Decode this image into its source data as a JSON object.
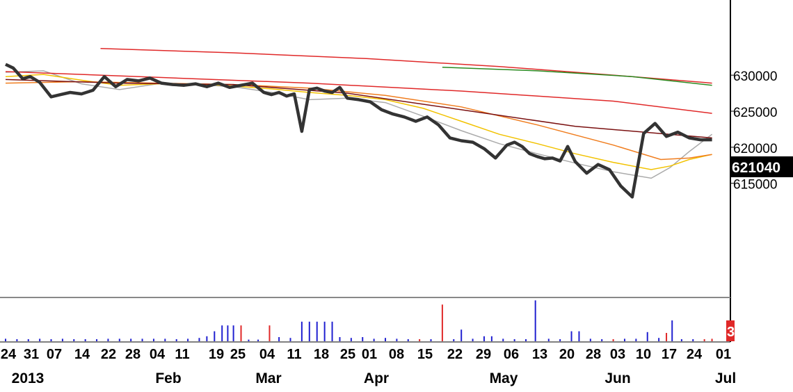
{
  "chart_data": {
    "type": "line",
    "title": "",
    "xlabel": "",
    "ylabel": "",
    "ylim": [
      611000,
      634500
    ],
    "grid": false,
    "legend": "none",
    "y_ticks": [
      "630000",
      "625000",
      "620000",
      "615000"
    ],
    "y_tick_values": [
      630000,
      625000,
      620000,
      615000
    ],
    "last_price_label": "621040",
    "last_price": 621040,
    "volume_badge": "3",
    "x_tick_labels": [
      "24",
      "31",
      "07",
      "14",
      "22",
      "28",
      "04",
      "11",
      "19",
      "25",
      "04",
      "11",
      "18",
      "25",
      "01",
      "08",
      "15",
      "22",
      "29",
      "06",
      "13",
      "20",
      "28",
      "03",
      "10",
      "17",
      "24",
      "01"
    ],
    "month_labels": [
      "2013",
      "Feb",
      "Mar",
      "Apr",
      "May",
      "Jun",
      "Jul"
    ],
    "price_series": {
      "name": "",
      "color": "#333333",
      "t": [
        0,
        4,
        9,
        13,
        18,
        24,
        29,
        34,
        40,
        46,
        52,
        58,
        64,
        70,
        76,
        82,
        88,
        94,
        100,
        106,
        112,
        118,
        124,
        130,
        136,
        140,
        144,
        148,
        152,
        156,
        160,
        164,
        168,
        172,
        176,
        180,
        186,
        192,
        198,
        204,
        210,
        216,
        222,
        228,
        234,
        240,
        246,
        252,
        258,
        264,
        268,
        272,
        276,
        280,
        284,
        288,
        292,
        296,
        300,
        306,
        312,
        318,
        324,
        330,
        336,
        342,
        348,
        354,
        360,
        366,
        372,
        376,
        380,
        384,
        388,
        392,
        396,
        400,
        404,
        408,
        412,
        416
      ],
      "v": [
        631500,
        631000,
        629500,
        629800,
        629000,
        627000,
        627300,
        627600,
        627400,
        627900,
        629800,
        628400,
        629400,
        629200,
        629600,
        628900,
        628700,
        628600,
        628800,
        628400,
        628900,
        628300,
        628600,
        628900,
        627600,
        627300,
        627600,
        627100,
        627400,
        622200,
        628000,
        628200,
        627800,
        627600,
        628300,
        626800,
        626600,
        626300,
        625200,
        624600,
        624200,
        623600,
        624200,
        623100,
        621300,
        620900,
        620700,
        619800,
        618500,
        620300,
        620700,
        620100,
        619100,
        618700,
        618400,
        618500,
        618100,
        620100,
        618000,
        616400,
        617600,
        616900,
        614600,
        613100,
        621900,
        623300,
        621500,
        622100,
        621300,
        621040,
        621040,
        621040,
        621040,
        621040,
        621040,
        621040,
        621040,
        621040,
        621040,
        621040,
        621040,
        621040
      ]
    },
    "moving_averages": [
      {
        "color": "#aaaaaa",
        "t": [
          0,
          20,
          40,
          60,
          80,
          100,
          120,
          140,
          160,
          180,
          200,
          220,
          240,
          260,
          280,
          300,
          320,
          340,
          350,
          360,
          372
        ],
        "v": [
          630400,
          630600,
          628800,
          628000,
          628800,
          628700,
          628400,
          627600,
          626600,
          626800,
          626200,
          624300,
          622300,
          620500,
          619100,
          617800,
          616600,
          615700,
          617200,
          619400,
          621800
        ]
      },
      {
        "color": "#f2c200",
        "t": [
          0,
          20,
          40,
          60,
          80,
          100,
          120,
          140,
          160,
          180,
          200,
          220,
          240,
          260,
          280,
          300,
          320,
          340,
          350,
          360,
          372
        ],
        "v": [
          629800,
          630100,
          629300,
          628600,
          628800,
          628800,
          628500,
          628100,
          627600,
          627200,
          626600,
          625400,
          623600,
          621800,
          620500,
          619100,
          617900,
          616900,
          617400,
          618300,
          619000
        ]
      },
      {
        "color": "#f07d1e",
        "t": [
          0,
          40,
          80,
          120,
          160,
          200,
          240,
          280,
          320,
          345,
          360,
          372
        ],
        "v": [
          628900,
          629100,
          628900,
          628700,
          628200,
          627200,
          625600,
          623100,
          620300,
          618300,
          618500,
          619000
        ]
      },
      {
        "color": "#7a1010",
        "t": [
          0,
          60,
          120,
          180,
          240,
          300,
          372
        ],
        "v": [
          629400,
          628900,
          628700,
          627500,
          625200,
          622900,
          621300
        ]
      },
      {
        "color": "#e02828",
        "t": [
          0,
          80,
          160,
          240,
          320,
          372
        ],
        "v": [
          630500,
          629700,
          628900,
          627800,
          626400,
          624700
        ]
      },
      {
        "color": "#e02828",
        "t": [
          50,
          120,
          190,
          260,
          330,
          372
        ],
        "v": [
          633700,
          633100,
          632300,
          631200,
          629800,
          628900
        ]
      },
      {
        "color": "#2a8a20",
        "t": [
          230,
          280,
          330,
          372
        ],
        "v": [
          631100,
          630600,
          629800,
          628600
        ]
      }
    ],
    "volume": {
      "max": 1.0,
      "bars": [
        {
          "t": 0,
          "v": 0.06,
          "c": "#2020d0"
        },
        {
          "t": 6,
          "v": 0.05,
          "c": "#2020d0"
        },
        {
          "t": 12,
          "v": 0.05,
          "c": "#2020d0"
        },
        {
          "t": 18,
          "v": 0.06,
          "c": "#2020d0"
        },
        {
          "t": 24,
          "v": 0.05,
          "c": "#2020d0"
        },
        {
          "t": 30,
          "v": 0.06,
          "c": "#2020d0"
        },
        {
          "t": 36,
          "v": 0.05,
          "c": "#2020d0"
        },
        {
          "t": 42,
          "v": 0.05,
          "c": "#2020d0"
        },
        {
          "t": 48,
          "v": 0.05,
          "c": "#2020d0"
        },
        {
          "t": 54,
          "v": 0.06,
          "c": "#2020d0"
        },
        {
          "t": 60,
          "v": 0.06,
          "c": "#2020d0"
        },
        {
          "t": 66,
          "v": 0.06,
          "c": "#2020d0"
        },
        {
          "t": 72,
          "v": 0.06,
          "c": "#2020d0"
        },
        {
          "t": 78,
          "v": 0.06,
          "c": "#2020d0"
        },
        {
          "t": 84,
          "v": 0.06,
          "c": "#2020d0"
        },
        {
          "t": 90,
          "v": 0.05,
          "c": "#2020d0"
        },
        {
          "t": 96,
          "v": 0.06,
          "c": "#2020d0"
        },
        {
          "t": 102,
          "v": 0.08,
          "c": "#2020d0"
        },
        {
          "t": 106,
          "v": 0.12,
          "c": "#2020d0"
        },
        {
          "t": 110,
          "v": 0.24,
          "c": "#2020d0"
        },
        {
          "t": 114,
          "v": 0.38,
          "c": "#2020d0"
        },
        {
          "t": 117,
          "v": 0.38,
          "c": "#2020d0"
        },
        {
          "t": 120,
          "v": 0.38,
          "c": "#2020d0"
        },
        {
          "t": 124,
          "v": 0.38,
          "c": "#e02828"
        },
        {
          "t": 128,
          "v": 0.04,
          "c": "#2020d0"
        },
        {
          "t": 133,
          "v": 0.04,
          "c": "#2020d0"
        },
        {
          "t": 139,
          "v": 0.38,
          "c": "#e02828"
        },
        {
          "t": 144,
          "v": 0.1,
          "c": "#2020d0"
        },
        {
          "t": 150,
          "v": 0.08,
          "c": "#2020d0"
        },
        {
          "t": 156,
          "v": 0.47,
          "c": "#2020d0"
        },
        {
          "t": 160,
          "v": 0.47,
          "c": "#2020d0"
        },
        {
          "t": 164,
          "v": 0.47,
          "c": "#2020d0"
        },
        {
          "t": 168,
          "v": 0.47,
          "c": "#2020d0"
        },
        {
          "t": 172,
          "v": 0.47,
          "c": "#2020d0"
        },
        {
          "t": 176,
          "v": 0.1,
          "c": "#2020d0"
        },
        {
          "t": 182,
          "v": 0.08,
          "c": "#2020d0"
        },
        {
          "t": 188,
          "v": 0.1,
          "c": "#2020d0"
        },
        {
          "t": 194,
          "v": 0.06,
          "c": "#2020d0"
        },
        {
          "t": 200,
          "v": 0.08,
          "c": "#2020d0"
        },
        {
          "t": 206,
          "v": 0.06,
          "c": "#2020d0"
        },
        {
          "t": 212,
          "v": 0.05,
          "c": "#2020d0"
        },
        {
          "t": 218,
          "v": 0.05,
          "c": "#e02828"
        },
        {
          "t": 224,
          "v": 0.05,
          "c": "#2020d0"
        },
        {
          "t": 230,
          "v": 0.88,
          "c": "#e02828"
        },
        {
          "t": 236,
          "v": 0.05,
          "c": "#2020d0"
        },
        {
          "t": 240,
          "v": 0.28,
          "c": "#2020d0"
        },
        {
          "t": 246,
          "v": 0.06,
          "c": "#2020d0"
        },
        {
          "t": 252,
          "v": 0.12,
          "c": "#2020d0"
        },
        {
          "t": 256,
          "v": 0.12,
          "c": "#2020d0"
        },
        {
          "t": 262,
          "v": 0.06,
          "c": "#2020d0"
        },
        {
          "t": 268,
          "v": 0.05,
          "c": "#2020d0"
        },
        {
          "t": 274,
          "v": 0.05,
          "c": "#2020d0"
        },
        {
          "t": 279,
          "v": 0.98,
          "c": "#2020d0"
        },
        {
          "t": 286,
          "v": 0.06,
          "c": "#2020d0"
        },
        {
          "t": 292,
          "v": 0.05,
          "c": "#2020d0"
        },
        {
          "t": 298,
          "v": 0.24,
          "c": "#2020d0"
        },
        {
          "t": 302,
          "v": 0.24,
          "c": "#2020d0"
        },
        {
          "t": 308,
          "v": 0.06,
          "c": "#2020d0"
        },
        {
          "t": 314,
          "v": 0.05,
          "c": "#2020d0"
        },
        {
          "t": 320,
          "v": 0.05,
          "c": "#e02828"
        },
        {
          "t": 326,
          "v": 0.06,
          "c": "#2020d0"
        },
        {
          "t": 332,
          "v": 0.06,
          "c": "#2020d0"
        },
        {
          "t": 338,
          "v": 0.22,
          "c": "#2020d0"
        },
        {
          "t": 344,
          "v": 0.08,
          "c": "#2020d0"
        },
        {
          "t": 348,
          "v": 0.2,
          "c": "#e02828"
        },
        {
          "t": 351,
          "v": 0.5,
          "c": "#2020d0"
        },
        {
          "t": 356,
          "v": 0.05,
          "c": "#2020d0"
        },
        {
          "t": 362,
          "v": 0.05,
          "c": "#2020d0"
        },
        {
          "t": 368,
          "v": 0.05,
          "c": "#e02828"
        },
        {
          "t": 372,
          "v": 0.06,
          "c": "#e02828"
        }
      ]
    }
  }
}
